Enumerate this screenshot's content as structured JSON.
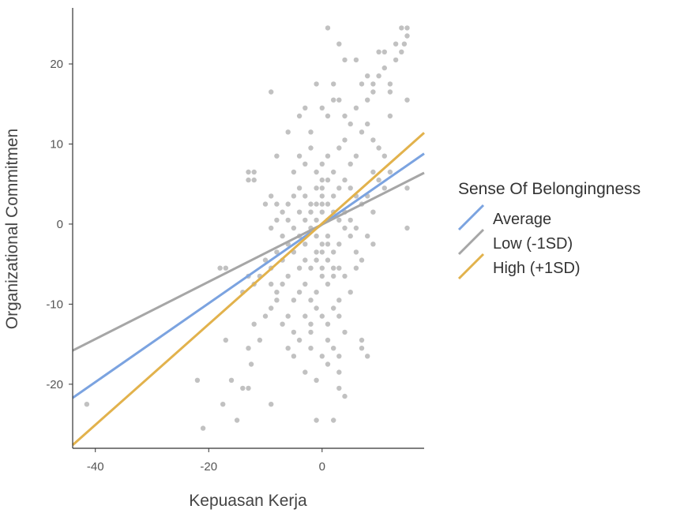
{
  "chart_data": {
    "type": "scatter",
    "xlabel": "Kepuasan Kerja",
    "ylabel": "Organizational Commitmen",
    "xlim": [
      -44,
      18
    ],
    "ylim": [
      -28,
      27
    ],
    "x_ticks": [
      -40,
      -20,
      0
    ],
    "y_ticks": [
      -20,
      -10,
      0,
      10,
      20
    ],
    "grid": false,
    "legend": {
      "title": "Sense Of Belongingness",
      "placement": "right",
      "entries": [
        {
          "label": "Average",
          "color": "#7ba3e0"
        },
        {
          "label": "Low (-1SD)",
          "color": "#a6a6a6"
        },
        {
          "label": "High (+1SD)",
          "color": "#e2b24c"
        }
      ]
    },
    "lines": [
      {
        "label": "Average",
        "color": "#7ba3e0",
        "x": [
          -44,
          18
        ],
        "y": [
          -21.7,
          8.8
        ]
      },
      {
        "label": "Low (-1SD)",
        "color": "#a6a6a6",
        "x": [
          -44,
          18
        ],
        "y": [
          -15.8,
          6.4
        ]
      },
      {
        "label": "High (+1SD)",
        "color": "#e2b24c",
        "x": [
          -44,
          18
        ],
        "y": [
          -27.6,
          11.4
        ]
      }
    ],
    "point_color": "#6b6b6b",
    "points": [
      [
        -41.5,
        -22.5
      ],
      [
        -21,
        -25.5
      ],
      [
        -22,
        -19.5
      ],
      [
        -17.5,
        -22.5
      ],
      [
        -16,
        -19.5
      ],
      [
        -15,
        -24.5
      ],
      [
        -14,
        -20.5
      ],
      [
        -13,
        -20.5
      ],
      [
        -17,
        -14.5
      ],
      [
        -13,
        -15.5
      ],
      [
        -12.5,
        -17.5
      ],
      [
        -11,
        -14.5
      ],
      [
        -9,
        -22.5
      ],
      [
        -12,
        -12.5
      ],
      [
        -10,
        -11.5
      ],
      [
        -9,
        -10.5
      ],
      [
        -8,
        -9.5
      ],
      [
        -7,
        -12.5
      ],
      [
        -6,
        -15.5
      ],
      [
        -5,
        -16.5
      ],
      [
        -4,
        -14.5
      ],
      [
        -3,
        -18.5
      ],
      [
        -2,
        -13.5
      ],
      [
        -1,
        -19.5
      ],
      [
        0,
        -16.5
      ],
      [
        1,
        -14.5
      ],
      [
        2,
        -15.5
      ],
      [
        3,
        -18.5
      ],
      [
        4,
        -21.5
      ],
      [
        2,
        -24.5
      ],
      [
        -1,
        -24.5
      ],
      [
        3,
        -20.5
      ],
      [
        -17,
        -5.5
      ],
      [
        -18,
        -5.5
      ],
      [
        -14,
        -8.5
      ],
      [
        -13,
        -6.5
      ],
      [
        -12,
        -7.5
      ],
      [
        -11,
        -6.5
      ],
      [
        -10,
        -4.5
      ],
      [
        -9,
        -5.5
      ],
      [
        -8,
        -3.5
      ],
      [
        -7,
        -4.5
      ],
      [
        -6,
        -2.5
      ],
      [
        -5,
        -3.5
      ],
      [
        -4,
        -1.5
      ],
      [
        -3,
        -2.5
      ],
      [
        -2,
        -0.5
      ],
      [
        -1,
        -1.5
      ],
      [
        0,
        -2.5
      ],
      [
        1,
        -1.5
      ],
      [
        2,
        -3.5
      ],
      [
        3,
        -2.5
      ],
      [
        4,
        -0.5
      ],
      [
        5,
        -1.5
      ],
      [
        6,
        -3.5
      ],
      [
        7,
        -4.5
      ],
      [
        -9,
        -7.5
      ],
      [
        -8,
        -8.5
      ],
      [
        -7,
        -7.5
      ],
      [
        -6,
        -6.5
      ],
      [
        -5,
        -9.5
      ],
      [
        -4,
        -8.5
      ],
      [
        -3,
        -7.5
      ],
      [
        -2,
        -9.5
      ],
      [
        -1,
        -8.5
      ],
      [
        0,
        -6.5
      ],
      [
        1,
        -7.5
      ],
      [
        2,
        -5.5
      ],
      [
        3,
        -9.5
      ],
      [
        4,
        -6.5
      ],
      [
        5,
        -8.5
      ],
      [
        6,
        -5.5
      ],
      [
        -3,
        -11.5
      ],
      [
        -2,
        -12.5
      ],
      [
        -1,
        -10.5
      ],
      [
        0,
        -11.5
      ],
      [
        1,
        -12.5
      ],
      [
        2,
        -10.5
      ],
      [
        3,
        -11.5
      ],
      [
        4,
        -13.5
      ],
      [
        7,
        -15.5
      ],
      [
        8,
        -16.5
      ],
      [
        7,
        -14.5
      ],
      [
        1,
        -17.5
      ],
      [
        3,
        -16.5
      ],
      [
        -2,
        -15.5
      ],
      [
        -5,
        -13.5
      ],
      [
        -6,
        -11.5
      ],
      [
        -13,
        5.5
      ],
      [
        -12,
        6.5
      ],
      [
        -13,
        6.5
      ],
      [
        -12,
        5.5
      ],
      [
        -10,
        2.5
      ],
      [
        -9,
        3.5
      ],
      [
        -8,
        2.5
      ],
      [
        -7,
        1.5
      ],
      [
        -6,
        2.5
      ],
      [
        -5,
        3.5
      ],
      [
        -4,
        4.5
      ],
      [
        -3,
        3.5
      ],
      [
        -2,
        2.5
      ],
      [
        -1,
        4.5
      ],
      [
        0,
        3.5
      ],
      [
        1,
        2.5
      ],
      [
        2,
        3.5
      ],
      [
        3,
        4.5
      ],
      [
        4,
        5.5
      ],
      [
        5,
        4.5
      ],
      [
        6,
        3.5
      ],
      [
        7,
        2.5
      ],
      [
        8,
        3.5
      ],
      [
        9,
        1.5
      ],
      [
        -9,
        -0.5
      ],
      [
        -8,
        0.5
      ],
      [
        -7,
        -1.5
      ],
      [
        -6,
        0.5
      ],
      [
        -5,
        -0.5
      ],
      [
        -4,
        1.5
      ],
      [
        -3,
        0.5
      ],
      [
        -2,
        1.5
      ],
      [
        -1,
        0.5
      ],
      [
        0,
        1.5
      ],
      [
        1,
        0.5
      ],
      [
        2,
        1.5
      ],
      [
        3,
        0.5
      ],
      [
        4,
        1.5
      ],
      [
        5,
        0.5
      ],
      [
        6,
        -0.5
      ],
      [
        -8,
        8.5
      ],
      [
        -5,
        6.5
      ],
      [
        -4,
        8.5
      ],
      [
        -3,
        7.5
      ],
      [
        -2,
        9.5
      ],
      [
        -1,
        6.5
      ],
      [
        0,
        7.5
      ],
      [
        1,
        8.5
      ],
      [
        2,
        6.5
      ],
      [
        3,
        9.5
      ],
      [
        4,
        10.5
      ],
      [
        5,
        7.5
      ],
      [
        6,
        8.5
      ],
      [
        7,
        11.5
      ],
      [
        8,
        12.5
      ],
      [
        9,
        10.5
      ],
      [
        -9,
        16.5
      ],
      [
        -6,
        11.5
      ],
      [
        -4,
        13.5
      ],
      [
        -2,
        11.5
      ],
      [
        0,
        14.5
      ],
      [
        1,
        13.5
      ],
      [
        2,
        15.5
      ],
      [
        3,
        15.5
      ],
      [
        4,
        13.5
      ],
      [
        5,
        12.5
      ],
      [
        6,
        14.5
      ],
      [
        7,
        17.5
      ],
      [
        8,
        15.5
      ],
      [
        9,
        16.5
      ],
      [
        10,
        18.5
      ],
      [
        11,
        19.5
      ],
      [
        12,
        17.5
      ],
      [
        13,
        20.5
      ],
      [
        14,
        21.5
      ],
      [
        14.5,
        22.5
      ],
      [
        15,
        23.5
      ],
      [
        15,
        24.5
      ],
      [
        14,
        24.5
      ],
      [
        13,
        22.5
      ],
      [
        10,
        21.5
      ],
      [
        11,
        21.5
      ],
      [
        8,
        18.5
      ],
      [
        9,
        17.5
      ],
      [
        12,
        16.5
      ],
      [
        6,
        20.5
      ],
      [
        4,
        20.5
      ],
      [
        3,
        22.5
      ],
      [
        1,
        24.5
      ],
      [
        -1,
        17.5
      ],
      [
        -3,
        14.5
      ],
      [
        2,
        17.5
      ],
      [
        12,
        13.5
      ],
      [
        15,
        15.5
      ],
      [
        15,
        4.5
      ],
      [
        15,
        -0.5
      ],
      [
        10,
        5.5
      ],
      [
        11,
        4.5
      ],
      [
        12,
        6.5
      ],
      [
        9,
        6.5
      ],
      [
        10,
        9.5
      ],
      [
        11,
        8.5
      ],
      [
        9,
        -2.5
      ],
      [
        8,
        -1.5
      ],
      [
        -1,
        -4.5
      ],
      [
        0,
        -5.5
      ],
      [
        1,
        -4.5
      ],
      [
        2,
        -6.5
      ],
      [
        3,
        -5.5
      ],
      [
        -2,
        -5.5
      ],
      [
        -3,
        -4.5
      ],
      [
        -4,
        -5.5
      ],
      [
        0,
        4.5
      ],
      [
        0,
        5.5
      ],
      [
        1,
        5.5
      ],
      [
        0,
        2.5
      ],
      [
        -1,
        2.5
      ],
      [
        1,
        -2.5
      ],
      [
        0,
        -3.5
      ],
      [
        -1,
        -3.5
      ]
    ]
  }
}
